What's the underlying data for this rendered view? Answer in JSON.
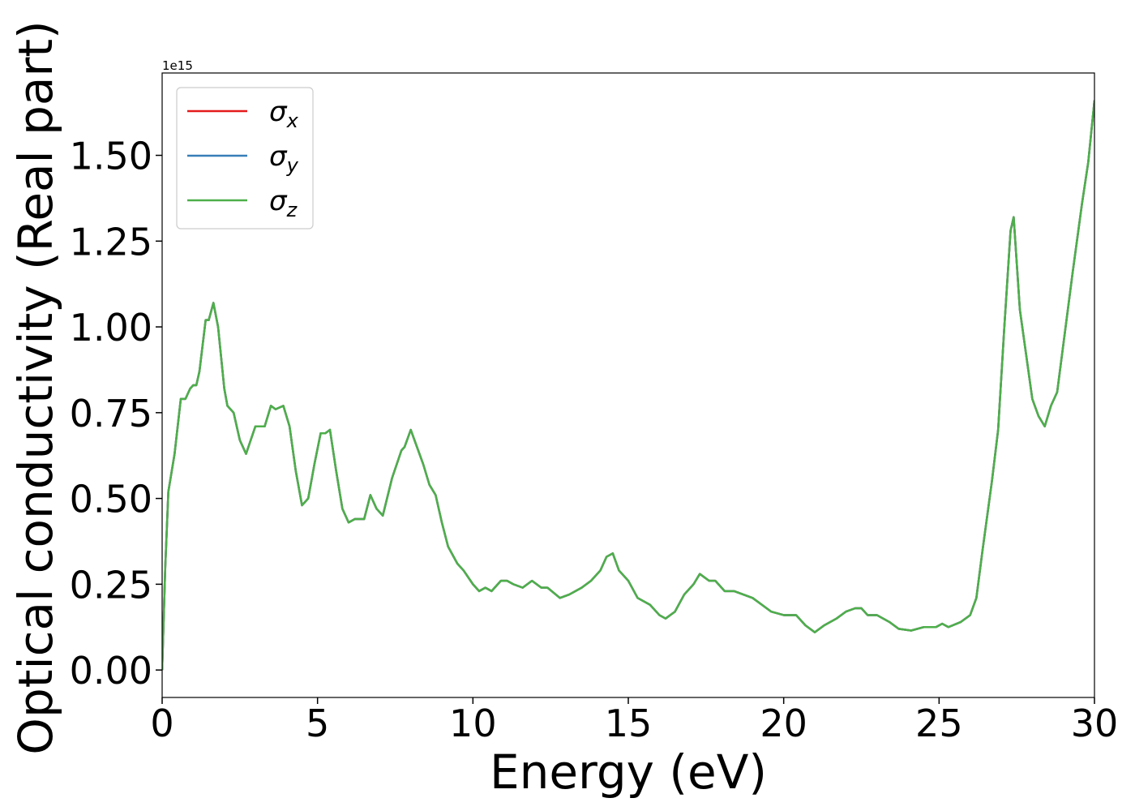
{
  "chart_data": {
    "type": "line",
    "x_label": "Energy (eV)",
    "y_label": "Optical conductivity (Real part)",
    "y_offset_label": "1e15",
    "xlim": [
      0,
      30
    ],
    "ylim": [
      -0.08,
      1.74
    ],
    "xticks": [
      0,
      5,
      10,
      15,
      20,
      25,
      30
    ],
    "yticks": [
      {
        "value": 0,
        "label": "0.00"
      },
      {
        "value": 0.25,
        "label": "0.25"
      },
      {
        "value": 0.5,
        "label": "0.50"
      },
      {
        "value": 0.75,
        "label": "0.75"
      },
      {
        "value": 1,
        "label": "1.00"
      },
      {
        "value": 1.25,
        "label": "1.25"
      },
      {
        "value": 1.5,
        "label": "1.50"
      }
    ],
    "legend": "upper left",
    "x": [
      0,
      0.1,
      0.2,
      0.4,
      0.6,
      0.75,
      0.9,
      1.0,
      1.1,
      1.2,
      1.4,
      1.5,
      1.65,
      1.8,
      2.0,
      2.1,
      2.3,
      2.5,
      2.7,
      3.0,
      3.2,
      3.3,
      3.5,
      3.65,
      3.9,
      4.1,
      4.3,
      4.5,
      4.7,
      4.9,
      5.1,
      5.25,
      5.4,
      5.6,
      5.8,
      6.0,
      6.2,
      6.5,
      6.7,
      6.9,
      7.1,
      7.4,
      7.7,
      7.8,
      8.0,
      8.2,
      8.4,
      8.6,
      8.8,
      9.0,
      9.2,
      9.5,
      9.7,
      10.0,
      10.2,
      10.4,
      10.6,
      10.9,
      11.1,
      11.3,
      11.6,
      11.9,
      12.2,
      12.4,
      12.8,
      13.1,
      13.5,
      13.8,
      14.1,
      14.3,
      14.5,
      14.7,
      15.0,
      15.3,
      15.7,
      16.0,
      16.2,
      16.5,
      16.8,
      17.1,
      17.3,
      17.6,
      17.8,
      18.1,
      18.4,
      18.7,
      19.0,
      19.3,
      19.6,
      20.0,
      20.4,
      20.7,
      21.0,
      21.3,
      21.7,
      22.0,
      22.3,
      22.5,
      22.7,
      23.0,
      23.4,
      23.7,
      24.1,
      24.5,
      24.9,
      25.1,
      25.3,
      25.7,
      26.0,
      26.2,
      26.4,
      26.7,
      26.9,
      27.1,
      27.3,
      27.4,
      27.6,
      27.8,
      28.0,
      28.2,
      28.4,
      28.6,
      28.8,
      29.0,
      29.3,
      29.6,
      29.8,
      30.0
    ],
    "series": [
      {
        "name": "σx",
        "color": "#e41a1c",
        "values": [
          0,
          0.3,
          0.52,
          0.63,
          0.79,
          0.79,
          0.82,
          0.83,
          0.83,
          0.87,
          1.02,
          1.02,
          1.07,
          1.0,
          0.82,
          0.77,
          0.75,
          0.67,
          0.63,
          0.71,
          0.71,
          0.71,
          0.77,
          0.76,
          0.77,
          0.71,
          0.58,
          0.48,
          0.5,
          0.6,
          0.69,
          0.69,
          0.7,
          0.58,
          0.47,
          0.43,
          0.44,
          0.44,
          0.51,
          0.47,
          0.45,
          0.56,
          0.64,
          0.65,
          0.7,
          0.65,
          0.6,
          0.54,
          0.51,
          0.43,
          0.36,
          0.31,
          0.29,
          0.25,
          0.23,
          0.24,
          0.23,
          0.26,
          0.26,
          0.25,
          0.24,
          0.26,
          0.24,
          0.24,
          0.21,
          0.22,
          0.24,
          0.26,
          0.29,
          0.33,
          0.34,
          0.29,
          0.26,
          0.21,
          0.19,
          0.16,
          0.15,
          0.17,
          0.22,
          0.25,
          0.28,
          0.26,
          0.26,
          0.23,
          0.23,
          0.22,
          0.21,
          0.19,
          0.17,
          0.16,
          0.16,
          0.13,
          0.11,
          0.13,
          0.15,
          0.17,
          0.18,
          0.18,
          0.16,
          0.16,
          0.14,
          0.12,
          0.115,
          0.125,
          0.125,
          0.135,
          0.125,
          0.14,
          0.16,
          0.21,
          0.35,
          0.55,
          0.7,
          1.0,
          1.28,
          1.32,
          1.05,
          0.92,
          0.79,
          0.74,
          0.71,
          0.77,
          0.81,
          0.95,
          1.16,
          1.36,
          1.48,
          1.66
        ]
      },
      {
        "name": "σy",
        "color": "#377eb8",
        "values": [
          0,
          0.3,
          0.52,
          0.63,
          0.79,
          0.79,
          0.82,
          0.83,
          0.83,
          0.87,
          1.02,
          1.02,
          1.07,
          1.0,
          0.82,
          0.77,
          0.75,
          0.67,
          0.63,
          0.71,
          0.71,
          0.71,
          0.77,
          0.76,
          0.77,
          0.71,
          0.58,
          0.48,
          0.5,
          0.6,
          0.69,
          0.69,
          0.7,
          0.58,
          0.47,
          0.43,
          0.44,
          0.44,
          0.51,
          0.47,
          0.45,
          0.56,
          0.64,
          0.65,
          0.7,
          0.65,
          0.6,
          0.54,
          0.51,
          0.43,
          0.36,
          0.31,
          0.29,
          0.25,
          0.23,
          0.24,
          0.23,
          0.26,
          0.26,
          0.25,
          0.24,
          0.26,
          0.24,
          0.24,
          0.21,
          0.22,
          0.24,
          0.26,
          0.29,
          0.33,
          0.34,
          0.29,
          0.26,
          0.21,
          0.19,
          0.16,
          0.15,
          0.17,
          0.22,
          0.25,
          0.28,
          0.26,
          0.26,
          0.23,
          0.23,
          0.22,
          0.21,
          0.19,
          0.17,
          0.16,
          0.16,
          0.13,
          0.11,
          0.13,
          0.15,
          0.17,
          0.18,
          0.18,
          0.16,
          0.16,
          0.14,
          0.12,
          0.115,
          0.125,
          0.125,
          0.135,
          0.125,
          0.14,
          0.16,
          0.21,
          0.35,
          0.55,
          0.7,
          1.0,
          1.28,
          1.32,
          1.05,
          0.92,
          0.79,
          0.74,
          0.71,
          0.77,
          0.81,
          0.95,
          1.16,
          1.36,
          1.48,
          1.66
        ]
      },
      {
        "name": "σz",
        "color": "#4daf4a",
        "values": [
          0,
          0.3,
          0.52,
          0.63,
          0.79,
          0.79,
          0.82,
          0.83,
          0.83,
          0.87,
          1.02,
          1.02,
          1.07,
          1.0,
          0.82,
          0.77,
          0.75,
          0.67,
          0.63,
          0.71,
          0.71,
          0.71,
          0.77,
          0.76,
          0.77,
          0.71,
          0.58,
          0.48,
          0.5,
          0.6,
          0.69,
          0.69,
          0.7,
          0.58,
          0.47,
          0.43,
          0.44,
          0.44,
          0.51,
          0.47,
          0.45,
          0.56,
          0.64,
          0.65,
          0.7,
          0.65,
          0.6,
          0.54,
          0.51,
          0.43,
          0.36,
          0.31,
          0.29,
          0.25,
          0.23,
          0.24,
          0.23,
          0.26,
          0.26,
          0.25,
          0.24,
          0.26,
          0.24,
          0.24,
          0.21,
          0.22,
          0.24,
          0.26,
          0.29,
          0.33,
          0.34,
          0.29,
          0.26,
          0.21,
          0.19,
          0.16,
          0.15,
          0.17,
          0.22,
          0.25,
          0.28,
          0.26,
          0.26,
          0.23,
          0.23,
          0.22,
          0.21,
          0.19,
          0.17,
          0.16,
          0.16,
          0.13,
          0.11,
          0.13,
          0.15,
          0.17,
          0.18,
          0.18,
          0.16,
          0.16,
          0.14,
          0.12,
          0.115,
          0.125,
          0.125,
          0.135,
          0.125,
          0.14,
          0.16,
          0.21,
          0.35,
          0.55,
          0.7,
          1.0,
          1.28,
          1.32,
          1.05,
          0.92,
          0.79,
          0.74,
          0.71,
          0.77,
          0.81,
          0.95,
          1.16,
          1.36,
          1.48,
          1.66
        ]
      }
    ]
  }
}
